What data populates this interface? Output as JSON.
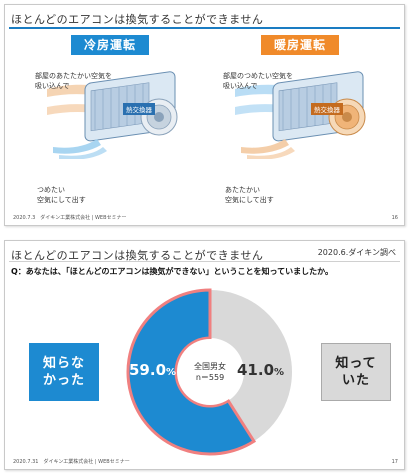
{
  "slide1": {
    "title": "ほとんどのエアコンは換気することができません",
    "cooling": {
      "badge": "冷房運転",
      "intake": [
        "部屋のあたたかい空気を",
        "吸い込んで"
      ],
      "hx": "熱交換器",
      "outflow": [
        "つめたい",
        "空気にして出す"
      ]
    },
    "heating": {
      "badge": "暖房運転",
      "intake": [
        "部屋のつめたい空気を",
        "吸い込んで"
      ],
      "hx": "熱交換器",
      "outflow": [
        "あたたかい",
        "空気にして出す"
      ]
    },
    "footer": "2020.7.3　ダイキン工業株式会社 | WEBセミナー",
    "page": "16",
    "colors": {
      "cool": "#1d8ad1",
      "warm": "#f08a2a"
    }
  },
  "slide2": {
    "title": "ほとんどのエアコンは換気することができません",
    "date_tag": "2020.6.ダイキン調べ",
    "question": "Q：あなたは、「ほとんどのエアコンは換気ができない」ということを知っていましたか。",
    "footer": "2020.7.31　ダイキン工業株式会社 | WEBセミナー",
    "page": "17",
    "left_callout": [
      "知らな",
      "かった"
    ],
    "right_callout": [
      "知って",
      "いた"
    ],
    "center": [
      "全国男女",
      "n＝559"
    ],
    "chart_data": {
      "type": "pie",
      "categories": [
        "知らなかった",
        "知っていた"
      ],
      "values": [
        59.0,
        41.0
      ],
      "labels": [
        "59.0",
        "41.0"
      ],
      "unit": "%",
      "colors": [
        "#1d8ad1",
        "#d9d9d9"
      ],
      "title": "",
      "legend": "callouts left and right"
    }
  }
}
